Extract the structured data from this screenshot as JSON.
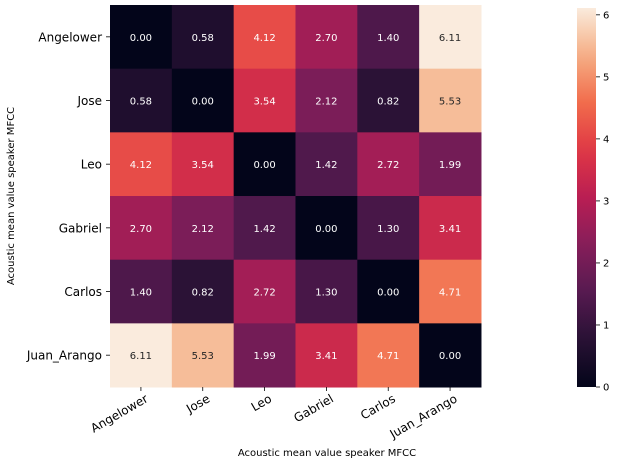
{
  "chart_data": {
    "type": "heatmap",
    "title": "",
    "xlabel": "Acoustic mean value speaker MFCC",
    "ylabel": "Acoustic mean value speaker MFCC",
    "x_categories": [
      "Angelower",
      "Jose",
      "Leo",
      "Gabriel",
      "Carlos",
      "Juan_Arango"
    ],
    "y_categories": [
      "Angelower",
      "Jose",
      "Leo",
      "Gabriel",
      "Carlos",
      "Juan_Arango"
    ],
    "values": [
      [
        0.0,
        0.58,
        4.12,
        2.7,
        1.4,
        6.11
      ],
      [
        0.58,
        0.0,
        3.54,
        2.12,
        0.82,
        5.53
      ],
      [
        4.12,
        3.54,
        0.0,
        1.42,
        2.72,
        1.99
      ],
      [
        2.7,
        2.12,
        1.42,
        0.0,
        1.3,
        3.41
      ],
      [
        1.4,
        0.82,
        2.72,
        1.3,
        0.0,
        4.71
      ],
      [
        6.11,
        5.53,
        1.99,
        3.41,
        4.71,
        0.0
      ]
    ],
    "colorbar": {
      "min": 0,
      "max": 6.11,
      "ticks": [
        "0",
        "1",
        "2",
        "3",
        "4",
        "5",
        "6"
      ]
    },
    "colormap": "rocket",
    "annotation_colors": {
      "dark_text": "#262626",
      "light_text": "#ffffff"
    }
  }
}
